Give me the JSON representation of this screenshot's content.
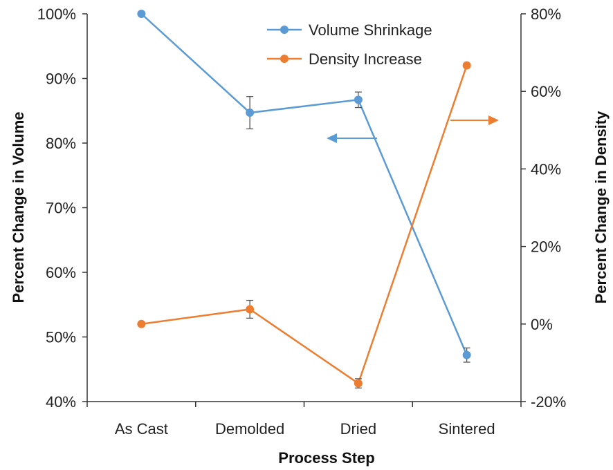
{
  "chart_data": {
    "type": "line",
    "categories": [
      "As Cast",
      "Demolded",
      "Dried",
      "Sintered"
    ],
    "xlabel": "Process Step",
    "ylabel": "Percent Change in Volume",
    "y2label": "Percent Change in Density",
    "ylim": [
      40,
      100
    ],
    "y2lim": [
      -20,
      80
    ],
    "y_ticks": [
      "40%",
      "50%",
      "60%",
      "70%",
      "80%",
      "90%",
      "100%"
    ],
    "y2_ticks": [
      "-20%",
      "0%",
      "20%",
      "40%",
      "60%",
      "80%"
    ],
    "legend_position": "top-center",
    "series": [
      {
        "name": "Volume Shrinkage",
        "axis": "left",
        "color": "#5B9BD5",
        "values": [
          100,
          84.7,
          86.7,
          47.2
        ],
        "error": [
          0,
          2.5,
          1.2,
          1.1
        ]
      },
      {
        "name": "Density Increase",
        "axis": "right",
        "color": "#ED7D31",
        "values": [
          0,
          3.8,
          -15.3,
          66.7
        ],
        "error": [
          0,
          2.3,
          1.2,
          0
        ]
      }
    ]
  }
}
